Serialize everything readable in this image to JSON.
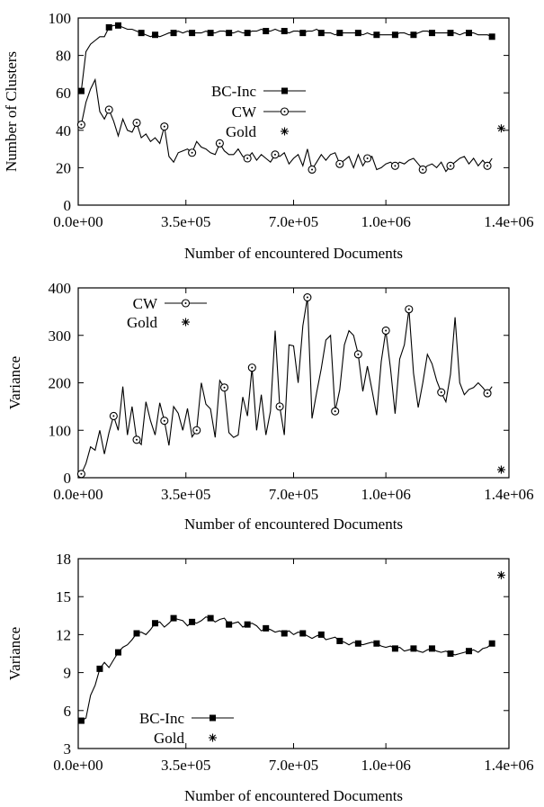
{
  "chart_data": [
    {
      "type": "line",
      "title": "",
      "xlabel": "Number of encountered Documents",
      "ylabel": "Number of Clusters",
      "xlim": [
        0,
        1400000
      ],
      "ylim": [
        0,
        100
      ],
      "x_ticks": [
        {
          "value": 0,
          "label": "0.0e+00"
        },
        {
          "value": 350000,
          "label": "3.5e+05"
        },
        {
          "value": 700000,
          "label": "7.0e+05"
        },
        {
          "value": 1000000,
          "label": "1.0e+06"
        },
        {
          "value": 1400000,
          "label": "1.4e+06"
        }
      ],
      "y_ticks": [
        {
          "value": 0,
          "label": "0"
        },
        {
          "value": 20,
          "label": "20"
        },
        {
          "value": 40,
          "label": "40"
        },
        {
          "value": 60,
          "label": "60"
        },
        {
          "value": 80,
          "label": "80"
        },
        {
          "value": 100,
          "label": "100"
        }
      ],
      "grid": false,
      "legend_position": "center",
      "series": [
        {
          "name": "BC-Inc",
          "marker": "filled-square",
          "x": [
            10000,
            25000,
            40000,
            55000,
            70000,
            85000,
            100000,
            115000,
            130000,
            145000,
            160000,
            175000,
            190000,
            205000,
            220000,
            235000,
            250000,
            265000,
            280000,
            295000,
            310000,
            325000,
            340000,
            355000,
            370000,
            385000,
            400000,
            415000,
            430000,
            445000,
            460000,
            475000,
            490000,
            505000,
            520000,
            535000,
            550000,
            565000,
            580000,
            595000,
            610000,
            625000,
            640000,
            655000,
            670000,
            685000,
            700000,
            715000,
            730000,
            745000,
            760000,
            775000,
            790000,
            805000,
            820000,
            835000,
            850000,
            865000,
            880000,
            895000,
            910000,
            925000,
            940000,
            955000,
            970000,
            985000,
            1000000,
            1015000,
            1030000,
            1045000,
            1060000,
            1075000,
            1090000,
            1105000,
            1120000,
            1135000,
            1150000,
            1165000,
            1180000,
            1195000,
            1210000,
            1225000,
            1240000,
            1255000,
            1270000,
            1285000,
            1300000,
            1315000,
            1330000,
            1345000
          ],
          "y": [
            61,
            82,
            86,
            88,
            90,
            90,
            95,
            96,
            96,
            95,
            94,
            94,
            93,
            92,
            91,
            90,
            91,
            90,
            91,
            92,
            92,
            93,
            92,
            93,
            92,
            92,
            92,
            93,
            92,
            92,
            93,
            93,
            92,
            92,
            93,
            92,
            92,
            93,
            93,
            94,
            93,
            93,
            94,
            93,
            93,
            92,
            93,
            93,
            92,
            93,
            93,
            94,
            92,
            92,
            92,
            91,
            92,
            92,
            92,
            92,
            92,
            91,
            92,
            91,
            91,
            91,
            91,
            91,
            91,
            92,
            92,
            91,
            91,
            92,
            93,
            93,
            92,
            92,
            92,
            92,
            92,
            92,
            91,
            92,
            92,
            92,
            91,
            91,
            91,
            90
          ],
          "marker_indices": [
            0,
            6,
            8,
            13,
            16,
            20,
            24,
            28,
            32,
            36,
            40,
            44,
            48,
            52,
            56,
            60,
            64,
            68,
            72,
            76,
            80,
            84,
            89
          ]
        },
        {
          "name": "CW",
          "marker": "open-circle",
          "x": [
            10000,
            25000,
            40000,
            55000,
            70000,
            85000,
            100000,
            115000,
            130000,
            145000,
            160000,
            175000,
            190000,
            205000,
            220000,
            235000,
            250000,
            265000,
            280000,
            295000,
            310000,
            325000,
            340000,
            355000,
            370000,
            385000,
            400000,
            415000,
            430000,
            445000,
            460000,
            475000,
            490000,
            505000,
            520000,
            535000,
            550000,
            565000,
            580000,
            595000,
            610000,
            625000,
            640000,
            655000,
            670000,
            685000,
            700000,
            715000,
            730000,
            745000,
            760000,
            775000,
            790000,
            805000,
            820000,
            835000,
            850000,
            865000,
            880000,
            895000,
            910000,
            925000,
            940000,
            955000,
            970000,
            985000,
            1000000,
            1015000,
            1030000,
            1045000,
            1060000,
            1075000,
            1090000,
            1105000,
            1120000,
            1135000,
            1150000,
            1165000,
            1180000,
            1195000,
            1210000,
            1225000,
            1240000,
            1255000,
            1270000,
            1285000,
            1300000,
            1315000,
            1330000,
            1345000
          ],
          "y": [
            43,
            55,
            62,
            67,
            50,
            46,
            51,
            45,
            37,
            46,
            40,
            39,
            44,
            36,
            38,
            34,
            36,
            33,
            42,
            26,
            23,
            28,
            29,
            30,
            28,
            34,
            31,
            30,
            28,
            27,
            33,
            29,
            27,
            27,
            30,
            26,
            25,
            28,
            24,
            27,
            25,
            23,
            27,
            26,
            28,
            22,
            25,
            27,
            21,
            30,
            19,
            23,
            27,
            24,
            27,
            28,
            22,
            24,
            26,
            20,
            27,
            21,
            25,
            26,
            19,
            20,
            22,
            23,
            21,
            23,
            22,
            24,
            25,
            22,
            19,
            21,
            22,
            20,
            23,
            18,
            21,
            23,
            25,
            26,
            22,
            25,
            21,
            24,
            21,
            25
          ],
          "marker_indices": [
            0,
            6,
            12,
            18,
            24,
            30,
            36,
            42,
            50,
            56,
            62,
            68,
            74,
            80,
            88
          ]
        },
        {
          "name": "Gold",
          "marker": "asterisk",
          "x": [
            1375000
          ],
          "y": [
            41
          ],
          "marker_indices": [
            0
          ]
        }
      ]
    },
    {
      "type": "line",
      "title": "",
      "xlabel": "Number of encountered Documents",
      "ylabel": "Variance",
      "xlim": [
        0,
        1400000
      ],
      "ylim": [
        0,
        400
      ],
      "x_ticks": [
        {
          "value": 0,
          "label": "0.0e+00"
        },
        {
          "value": 350000,
          "label": "3.5e+05"
        },
        {
          "value": 700000,
          "label": "7.0e+05"
        },
        {
          "value": 1000000,
          "label": "1.0e+06"
        },
        {
          "value": 1400000,
          "label": "1.4e+06"
        }
      ],
      "y_ticks": [
        {
          "value": 0,
          "label": "0"
        },
        {
          "value": 100,
          "label": "100"
        },
        {
          "value": 200,
          "label": "200"
        },
        {
          "value": 300,
          "label": "300"
        },
        {
          "value": 400,
          "label": "400"
        }
      ],
      "grid": false,
      "legend_position": "top-left",
      "series": [
        {
          "name": "CW",
          "marker": "open-circle",
          "x": [
            10000,
            25000,
            40000,
            55000,
            70000,
            85000,
            100000,
            115000,
            130000,
            145000,
            160000,
            175000,
            190000,
            205000,
            220000,
            235000,
            250000,
            265000,
            280000,
            295000,
            310000,
            325000,
            340000,
            355000,
            370000,
            385000,
            400000,
            415000,
            430000,
            445000,
            460000,
            475000,
            490000,
            505000,
            520000,
            535000,
            550000,
            565000,
            580000,
            595000,
            610000,
            625000,
            640000,
            655000,
            670000,
            685000,
            700000,
            715000,
            730000,
            745000,
            760000,
            775000,
            790000,
            805000,
            820000,
            835000,
            850000,
            865000,
            880000,
            895000,
            910000,
            925000,
            940000,
            955000,
            970000,
            985000,
            1000000,
            1015000,
            1030000,
            1045000,
            1060000,
            1075000,
            1090000,
            1105000,
            1120000,
            1135000,
            1150000,
            1165000,
            1180000,
            1195000,
            1210000,
            1225000,
            1240000,
            1255000,
            1270000,
            1285000,
            1300000,
            1315000,
            1330000,
            1345000
          ],
          "y": [
            8,
            30,
            65,
            58,
            100,
            50,
            95,
            130,
            100,
            192,
            90,
            150,
            80,
            70,
            160,
            120,
            90,
            158,
            120,
            68,
            150,
            136,
            100,
            146,
            86,
            100,
            200,
            155,
            145,
            85,
            205,
            190,
            95,
            85,
            90,
            170,
            130,
            232,
            100,
            175,
            90,
            140,
            310,
            150,
            90,
            280,
            278,
            200,
            320,
            380,
            125,
            180,
            230,
            290,
            300,
            140,
            185,
            280,
            310,
            300,
            260,
            182,
            235,
            185,
            132,
            245,
            310,
            230,
            135,
            250,
            280,
            355,
            220,
            148,
            200,
            260,
            240,
            205,
            180,
            160,
            218,
            338,
            200,
            175,
            186,
            190,
            200,
            190,
            178,
            192
          ],
          "marker_indices": [
            0,
            7,
            12,
            18,
            25,
            31,
            37,
            43,
            49,
            55,
            60,
            66,
            71,
            78,
            88
          ]
        },
        {
          "name": "Gold",
          "marker": "asterisk",
          "x": [
            1375000
          ],
          "y": [
            17
          ],
          "marker_indices": [
            0
          ]
        }
      ]
    },
    {
      "type": "line",
      "title": "",
      "xlabel": "Number of encountered Documents",
      "ylabel": "Variance",
      "xlim": [
        0,
        1400000
      ],
      "ylim": [
        3,
        18
      ],
      "x_ticks": [
        {
          "value": 0,
          "label": "0.0e+00"
        },
        {
          "value": 350000,
          "label": "3.5e+05"
        },
        {
          "value": 700000,
          "label": "7.0e+05"
        },
        {
          "value": 1000000,
          "label": "1.0e+06"
        },
        {
          "value": 1400000,
          "label": "1.4e+06"
        }
      ],
      "y_ticks": [
        {
          "value": 3,
          "label": "3"
        },
        {
          "value": 6,
          "label": "6"
        },
        {
          "value": 9,
          "label": "9"
        },
        {
          "value": 12,
          "label": "12"
        },
        {
          "value": 15,
          "label": "15"
        },
        {
          "value": 18,
          "label": "18"
        }
      ],
      "grid": false,
      "legend_position": "bottom-left",
      "series": [
        {
          "name": "BC-Inc",
          "marker": "filled-square",
          "x": [
            10000,
            25000,
            40000,
            55000,
            70000,
            85000,
            100000,
            115000,
            130000,
            145000,
            160000,
            175000,
            190000,
            205000,
            220000,
            235000,
            250000,
            265000,
            280000,
            295000,
            310000,
            325000,
            340000,
            355000,
            370000,
            385000,
            400000,
            415000,
            430000,
            445000,
            460000,
            475000,
            490000,
            505000,
            520000,
            535000,
            550000,
            565000,
            580000,
            595000,
            610000,
            625000,
            640000,
            655000,
            670000,
            685000,
            700000,
            715000,
            730000,
            745000,
            760000,
            775000,
            790000,
            805000,
            820000,
            835000,
            850000,
            865000,
            880000,
            895000,
            910000,
            925000,
            940000,
            955000,
            970000,
            985000,
            1000000,
            1015000,
            1030000,
            1045000,
            1060000,
            1075000,
            1090000,
            1105000,
            1120000,
            1135000,
            1150000,
            1165000,
            1180000,
            1195000,
            1210000,
            1225000,
            1240000,
            1255000,
            1270000,
            1285000,
            1300000,
            1315000,
            1330000,
            1345000
          ],
          "y": [
            5.2,
            5.4,
            7.2,
            8.0,
            9.3,
            9.8,
            9.4,
            10.0,
            10.6,
            11.0,
            11.2,
            11.6,
            12.1,
            12.2,
            12.0,
            12.4,
            12.9,
            13.0,
            12.6,
            12.9,
            13.3,
            13.2,
            13.1,
            12.7,
            13.0,
            12.9,
            13.1,
            13.4,
            13.3,
            13.0,
            13.2,
            13.3,
            12.8,
            12.9,
            13.0,
            12.6,
            12.8,
            12.9,
            12.7,
            12.3,
            12.5,
            12.4,
            12.2,
            12.3,
            12.1,
            12.3,
            12.0,
            12.2,
            12.1,
            11.9,
            11.7,
            11.9,
            12.0,
            11.6,
            11.7,
            11.8,
            11.5,
            11.4,
            11.2,
            11.4,
            11.3,
            11.2,
            11.3,
            11.4,
            11.3,
            11.1,
            11.0,
            11.1,
            10.9,
            11.0,
            10.7,
            10.8,
            10.9,
            10.7,
            10.6,
            10.8,
            10.9,
            10.7,
            10.6,
            10.7,
            10.5,
            10.4,
            10.5,
            10.6,
            10.7,
            10.8,
            10.6,
            10.9,
            11.0,
            11.3
          ],
          "marker_indices": [
            0,
            4,
            8,
            12,
            16,
            20,
            24,
            28,
            32,
            36,
            40,
            44,
            48,
            52,
            56,
            60,
            64,
            68,
            72,
            76,
            80,
            84,
            89
          ]
        },
        {
          "name": "Gold",
          "marker": "asterisk",
          "x": [
            1375000
          ],
          "y": [
            16.7
          ],
          "marker_indices": [
            0
          ]
        }
      ]
    }
  ]
}
